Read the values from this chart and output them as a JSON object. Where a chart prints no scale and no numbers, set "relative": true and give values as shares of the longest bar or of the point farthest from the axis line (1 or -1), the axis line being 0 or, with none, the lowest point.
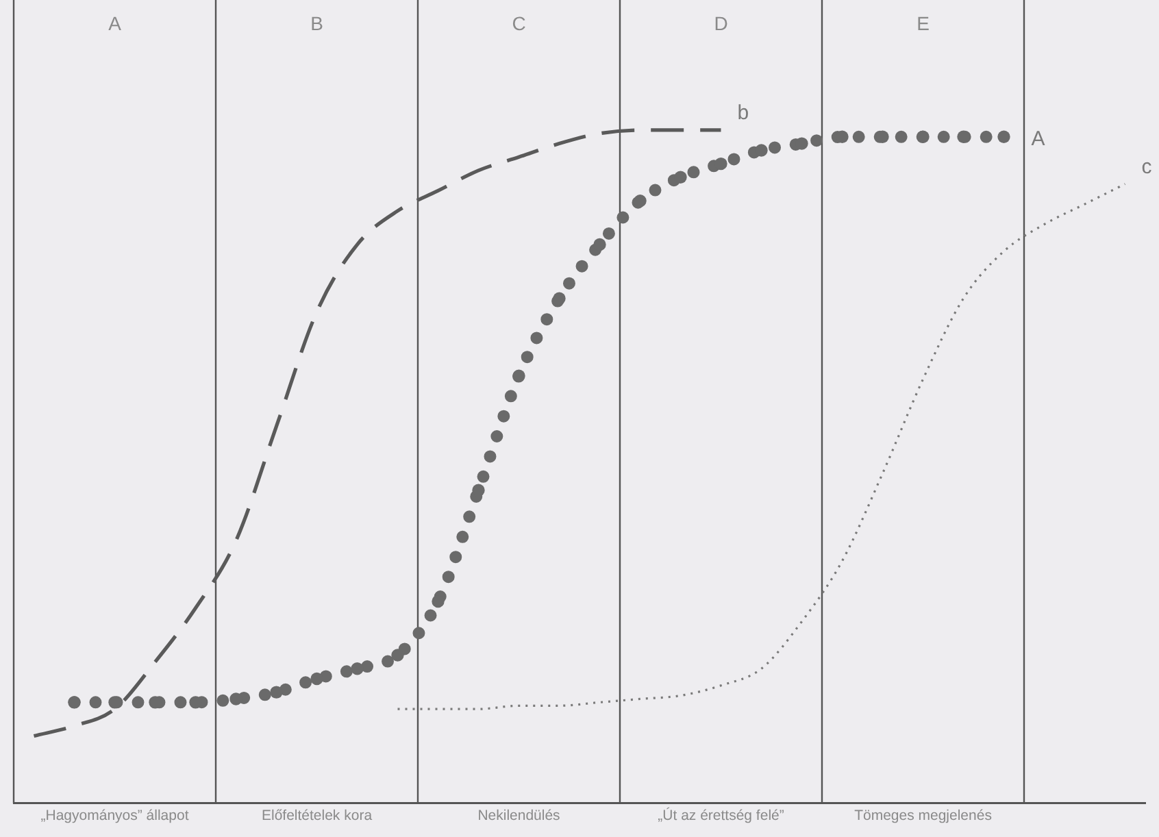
{
  "chart_data": {
    "type": "line",
    "relative": true,
    "grid": false,
    "legend": false,
    "categories": [
      null,
      null,
      "„Hagyományos” állapot",
      null,
      null,
      null,
      null,
      "Előfeltételek kora",
      null,
      null,
      null,
      null,
      "Nekilendülés",
      null,
      null,
      null,
      null,
      "„Út az érettség felé”",
      null,
      null,
      null,
      null,
      "Tömeges megjelenés",
      null,
      null,
      null,
      null,
      null
    ],
    "annotations": [
      "A",
      "B",
      "C",
      "D",
      "E"
    ],
    "series": [
      {
        "name": "b",
        "color": "#5a5a5a",
        "line_style": "dashed",
        "values": [
          0.1,
          0.115,
          0.14,
          0.21,
          0.29,
          0.39,
          0.56,
          0.73,
          0.83,
          0.88,
          0.91,
          0.94,
          0.96,
          0.98,
          0.995,
          1.0,
          1.0,
          1.0,
          null,
          null,
          null,
          null,
          null,
          null,
          null,
          null,
          null,
          null
        ]
      },
      {
        "name": "A",
        "color": "#6a6a6a",
        "line_style": "dotted",
        "marker": "circle",
        "values": [
          null,
          0.15,
          0.15,
          0.15,
          0.15,
          0.155,
          0.165,
          0.185,
          0.2,
          0.22,
          0.3,
          0.465,
          0.635,
          0.75,
          0.83,
          0.895,
          0.93,
          0.95,
          0.97,
          0.98,
          0.99,
          0.99,
          0.99,
          0.99,
          0.99,
          null,
          null,
          null
        ]
      },
      {
        "name": "c",
        "color": "#7a7a7a",
        "line_style": "dotted",
        "values": [
          null,
          null,
          null,
          null,
          null,
          null,
          null,
          null,
          null,
          0.14,
          0.14,
          0.14,
          0.145,
          0.145,
          0.15,
          0.155,
          0.16,
          0.175,
          0.2,
          0.27,
          0.36,
          0.49,
          0.63,
          0.75,
          0.82,
          0.86,
          0.89,
          0.92
        ]
      }
    ]
  }
}
